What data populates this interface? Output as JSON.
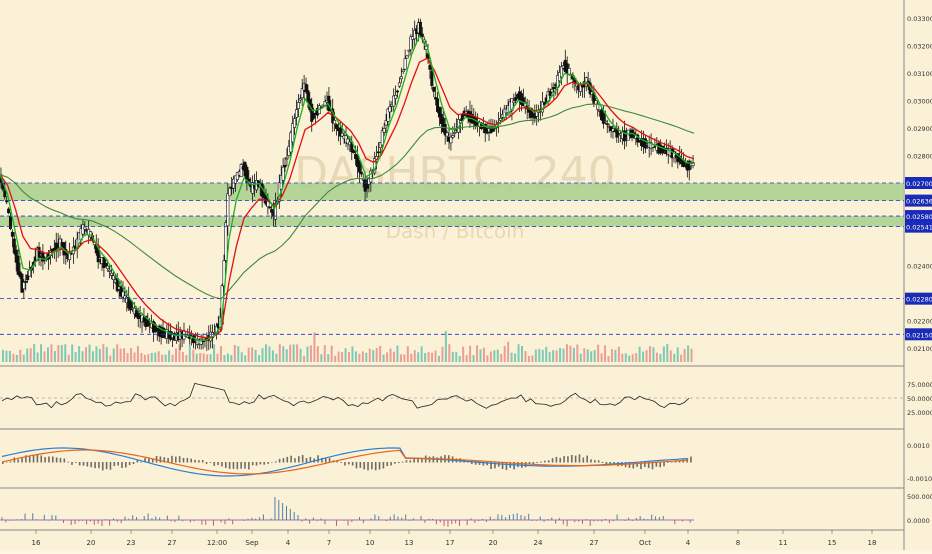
{
  "watermark": {
    "symbol": "DASHBTC, 240",
    "name": "Dash / Bitcoin"
  },
  "colors": {
    "background": "#fbf1d6",
    "candle_up": "#ffffff",
    "candle_down": "#111111",
    "ema_fast": "#1db31d",
    "ema_mid": "#e01010",
    "ma_slow": "#3f8a3f",
    "zone_fill": "#a8cf8d",
    "level_line": "#2233cc",
    "price_label_bg": "#1a2bb8",
    "macd_line": "#2b7fd4",
    "signal_line": "#e8661c",
    "rsi_line": "#222222",
    "vol_up": "#5fbfae",
    "vol_down": "#e58b84"
  },
  "price_axis": {
    "ticks": [
      "0.033000",
      "0.032000",
      "0.031000",
      "0.030000",
      "0.029000",
      "0.028000",
      "0.024000",
      "0.022000",
      "0.021000"
    ]
  },
  "levels": [
    {
      "price": 0.027,
      "label": "0.027000"
    },
    {
      "price": 0.026361,
      "label": "0.026361"
    },
    {
      "price": 0.0258,
      "label": "0.025800"
    },
    {
      "price": 0.025415,
      "label": "0.025415"
    },
    {
      "price": 0.0228,
      "label": "0.022800"
    },
    {
      "price": 0.021506,
      "label": "0.021506"
    }
  ],
  "zones": [
    {
      "top": 0.027,
      "bottom": 0.026361
    },
    {
      "top": 0.0258,
      "bottom": 0.025415
    }
  ],
  "rsi_axis": {
    "ticks": [
      "75.0000",
      "50.0000",
      "25.0000"
    ]
  },
  "macd_axis": {
    "ticks": [
      "0.0010",
      "-0.0010"
    ]
  },
  "osc_axis": {
    "ticks": [
      "500.0000",
      "0.0000"
    ]
  },
  "x_axis": {
    "ticks": [
      "16",
      "20",
      "23",
      "27",
      "12:00",
      "Sep",
      "4",
      "7",
      "10",
      "13",
      "17",
      "20",
      "24",
      "27",
      "Oct",
      "4",
      "8",
      "11",
      "15",
      "18"
    ]
  },
  "chart_data": {
    "type": "candlestick",
    "title": "DASHBTC, 240",
    "subtitle": "Dash / Bitcoin",
    "ylim": [
      0.0205,
      0.0335
    ],
    "series": [
      {
        "name": "close",
        "values": [
          0.0273,
          0.0262,
          0.0245,
          0.0232,
          0.0238,
          0.0245,
          0.0242,
          0.0246,
          0.0248,
          0.0243,
          0.0247,
          0.0254,
          0.0251,
          0.0243,
          0.024,
          0.0235,
          0.023,
          0.0226,
          0.0222,
          0.022,
          0.0218,
          0.0216,
          0.0215,
          0.0214,
          0.0215,
          0.0214,
          0.0212,
          0.0213,
          0.0215,
          0.022,
          0.0266,
          0.0272,
          0.0276,
          0.0268,
          0.027,
          0.0263,
          0.0258,
          0.0272,
          0.0283,
          0.0297,
          0.0306,
          0.0294,
          0.0297,
          0.03,
          0.0291,
          0.0287,
          0.0284,
          0.0277,
          0.0268,
          0.0275,
          0.0285,
          0.0296,
          0.0302,
          0.0312,
          0.0322,
          0.0327,
          0.0318,
          0.0302,
          0.0292,
          0.0285,
          0.029,
          0.0296,
          0.0293,
          0.0291,
          0.0289,
          0.029,
          0.0295,
          0.0298,
          0.0302,
          0.0298,
          0.0294,
          0.0297,
          0.0302,
          0.0306,
          0.0313,
          0.0309,
          0.0304,
          0.0307,
          0.03,
          0.0294,
          0.029,
          0.0288,
          0.0287,
          0.0288,
          0.0285,
          0.0284,
          0.0283,
          0.0282,
          0.0281,
          0.0279,
          0.0276,
          0.0277
        ]
      }
    ]
  }
}
